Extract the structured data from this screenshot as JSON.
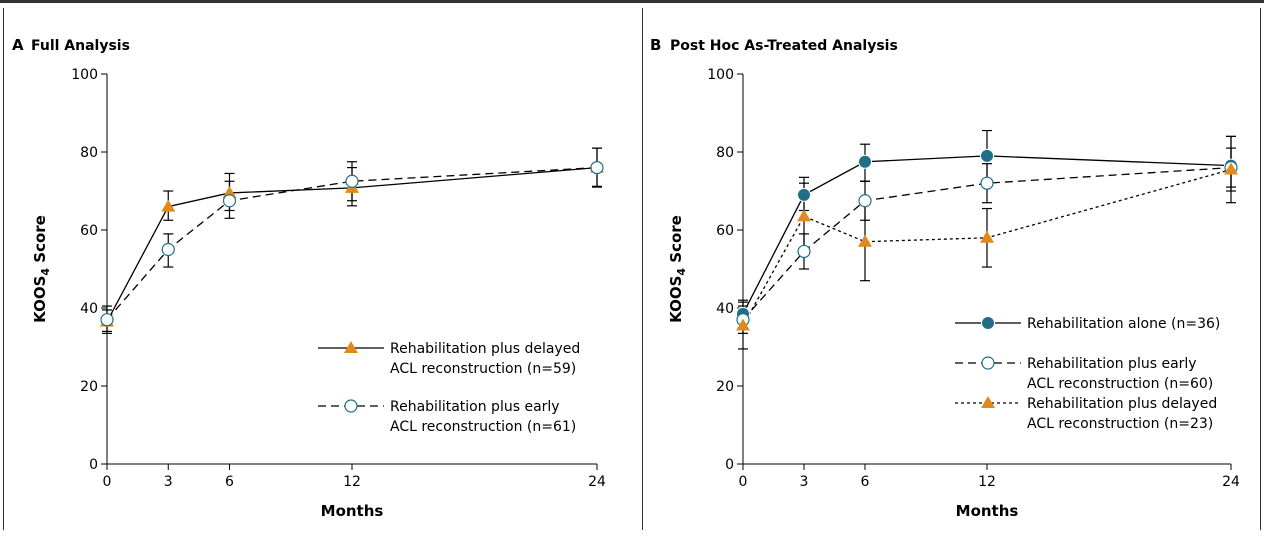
{
  "figure": {
    "panels": [
      {
        "letter": "A",
        "title": "Full Analysis"
      },
      {
        "letter": "B",
        "title": "Post Hoc As-Treated Analysis"
      }
    ]
  },
  "colors": {
    "triangle": "#e08a1e",
    "filled_circle": "#1f6f86",
    "open_circle_stroke": "#1f6f86",
    "line": "#000000"
  },
  "chart_data": [
    {
      "type": "line",
      "panel": "A",
      "title": "Full Analysis",
      "xlabel": "Months",
      "ylabel": "KOOS4 Score",
      "ylabel_main": "KOOS",
      "ylabel_sub": "4",
      "ylabel_rest": " Score",
      "x": [
        0,
        3,
        6,
        12,
        24
      ],
      "x_ticks": [
        "0",
        "3",
        "6",
        "12",
        "24"
      ],
      "xlim": [
        0,
        24
      ],
      "ylim": [
        0,
        100
      ],
      "y_ticks": [
        "0",
        "20",
        "40",
        "60",
        "80",
        "100"
      ],
      "series": [
        {
          "name_line1": "Rehabilitation plus delayed",
          "name_line2": "ACL reconstruction (n=59)",
          "name": "Rehabilitation plus delayed ACL reconstruction (n=59)",
          "marker": "triangle",
          "dash": "solid",
          "values": [
            36.5,
            66,
            69.5,
            70.8,
            76
          ],
          "err_low": [
            34,
            62.5,
            65,
            66.2,
            71.2
          ],
          "err_high": [
            39.5,
            70,
            74.5,
            76,
            81
          ]
        },
        {
          "name_line1": "Rehabilitation plus early",
          "name_line2": "ACL reconstruction (n=61)",
          "name": "Rehabilitation plus early ACL reconstruction (n=61)",
          "marker": "open-circle",
          "dash": "dashed",
          "values": [
            37,
            55,
            67.5,
            72.5,
            76
          ],
          "err_low": [
            33.5,
            50.5,
            63,
            67.5,
            71
          ],
          "err_high": [
            40.5,
            59,
            72.5,
            77.5,
            81
          ]
        }
      ],
      "legend_placement": "bottom-right"
    },
    {
      "type": "line",
      "panel": "B",
      "title": "Post Hoc As-Treated Analysis",
      "xlabel": "Months",
      "ylabel": "KOOS4 Score",
      "ylabel_main": "KOOS",
      "ylabel_sub": "4",
      "ylabel_rest": " Score",
      "x": [
        0,
        3,
        6,
        12,
        24
      ],
      "x_ticks": [
        "0",
        "3",
        "6",
        "12",
        "24"
      ],
      "xlim": [
        0,
        24
      ],
      "ylim": [
        0,
        100
      ],
      "y_ticks": [
        "0",
        "20",
        "40",
        "60",
        "80",
        "100"
      ],
      "series": [
        {
          "name_line1": "Rehabilitation alone (n=36)",
          "name_line2": "",
          "name": "Rehabilitation alone (n=36)",
          "marker": "filled-circle",
          "dash": "solid",
          "values": [
            38.5,
            69,
            77.5,
            79,
            76.5
          ],
          "err_low": [
            34.5,
            65,
            72.5,
            72.5,
            70
          ],
          "err_high": [
            42,
            73.5,
            82,
            85.5,
            84
          ]
        },
        {
          "name_line1": "Rehabilitation plus early",
          "name_line2": "ACL reconstruction (n=60)",
          "name": "Rehabilitation plus early ACL reconstruction (n=60)",
          "marker": "open-circle",
          "dash": "dashed",
          "values": [
            37,
            54.5,
            67.5,
            72,
            76
          ],
          "err_low": [
            33.5,
            50,
            62.5,
            67,
            71
          ],
          "err_high": [
            40.5,
            59,
            72.5,
            77,
            81
          ]
        },
        {
          "name_line1": "Rehabilitation plus delayed",
          "name_line2": "ACL reconstruction (n=23)",
          "name": "Rehabilitation plus delayed ACL reconstruction (n=23)",
          "marker": "triangle",
          "dash": "dotted",
          "values": [
            35.5,
            63.5,
            57,
            58,
            75.5
          ],
          "err_low": [
            29.5,
            55,
            47,
            50.5,
            67
          ],
          "err_high": [
            41.5,
            72,
            67,
            65.5,
            84
          ]
        }
      ],
      "legend_placement": "bottom-right"
    }
  ]
}
